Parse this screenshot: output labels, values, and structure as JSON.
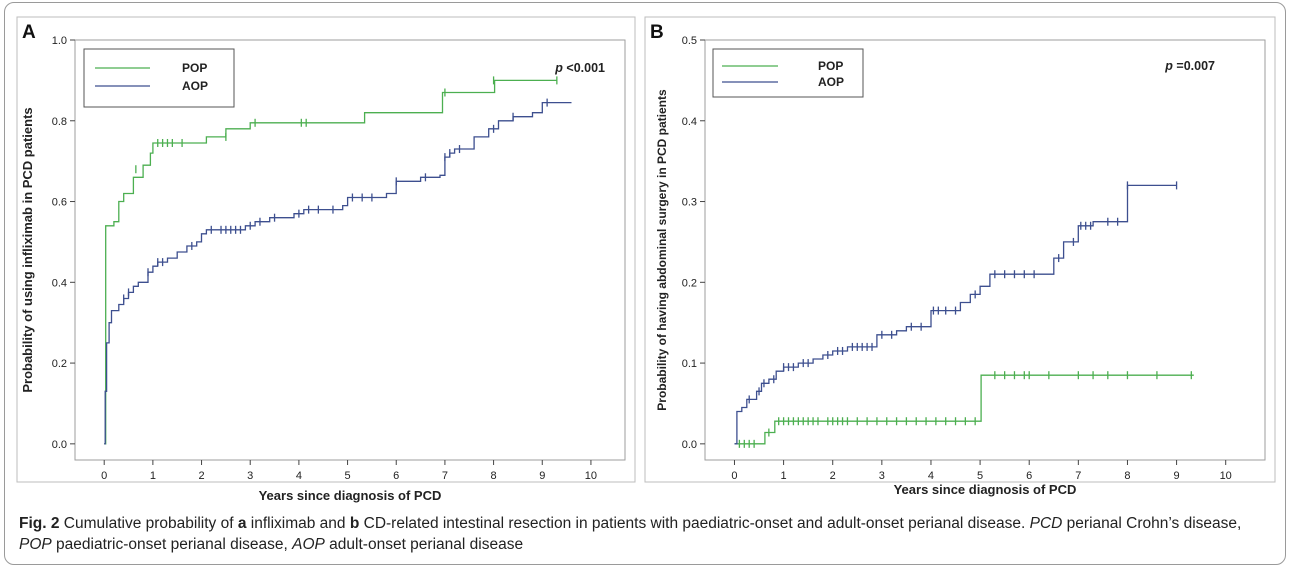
{
  "caption": {
    "label": "Fig. 2",
    "segments": [
      {
        "t": "  Cumulative probability of ",
        "s": "n"
      },
      {
        "t": "a",
        "s": "b"
      },
      {
        "t": " infliximab and ",
        "s": "n"
      },
      {
        "t": "b",
        "s": "b"
      },
      {
        "t": " CD-related intestinal resection in patients with paediatric-onset and adult-onset perianal disease. ",
        "s": "n"
      },
      {
        "t": "PCD",
        "s": "i"
      },
      {
        "t": " perianal Crohn’s disease, ",
        "s": "n"
      },
      {
        "t": "POP",
        "s": "i"
      },
      {
        "t": " paediatric-onset perianal disease, ",
        "s": "n"
      },
      {
        "t": "AOP",
        "s": "i"
      },
      {
        "t": " adult-onset perianal disease",
        "s": "n"
      }
    ]
  },
  "colors": {
    "POP": "#4caf50",
    "AOP": "#3d4f8f"
  },
  "chart_data": [
    {
      "type": "line",
      "panel": "A",
      "xlabel": "Years since diagnosis of PCD",
      "ylabel": "Probability of using infliximab in PCD patients",
      "xlim": [
        -0.6,
        10.7
      ],
      "ylim": [
        -0.04,
        1.0
      ],
      "xticks": [
        "0",
        "1",
        "2",
        "3",
        "4",
        "5",
        "6",
        "7",
        "8",
        "9",
        "10"
      ],
      "yticks": [
        "0.0",
        "0.2",
        "0.4",
        "0.6",
        "0.8",
        "1.0"
      ],
      "pvalue": "p <0.001",
      "legend": {
        "placement": "top-left",
        "entries": [
          "POP",
          "AOP"
        ]
      },
      "series": [
        {
          "name": "POP",
          "steps": [
            [
              0,
              0
            ],
            [
              0.03,
              0.54
            ],
            [
              0.2,
              0.55
            ],
            [
              0.3,
              0.6
            ],
            [
              0.4,
              0.62
            ],
            [
              0.6,
              0.66
            ],
            [
              0.8,
              0.69
            ],
            [
              0.95,
              0.72
            ],
            [
              1.0,
              0.745
            ],
            [
              2.0,
              0.745
            ],
            [
              2.1,
              0.76
            ],
            [
              2.5,
              0.78
            ],
            [
              3.0,
              0.795
            ],
            [
              5.3,
              0.795
            ],
            [
              5.35,
              0.82
            ],
            [
              6.9,
              0.82
            ],
            [
              6.95,
              0.87
            ],
            [
              8.0,
              0.87
            ],
            [
              8.02,
              0.9
            ],
            [
              9.3,
              0.9
            ]
          ],
          "censors": [
            [
              0.65,
              0.68
            ],
            [
              1.1,
              0.745
            ],
            [
              1.2,
              0.745
            ],
            [
              1.3,
              0.745
            ],
            [
              1.4,
              0.745
            ],
            [
              1.6,
              0.745
            ],
            [
              2.5,
              0.76
            ],
            [
              3.1,
              0.795
            ],
            [
              4.05,
              0.795
            ],
            [
              4.15,
              0.795
            ],
            [
              7.0,
              0.87
            ],
            [
              8.0,
              0.9
            ],
            [
              9.3,
              0.9
            ]
          ]
        },
        {
          "name": "AOP",
          "steps": [
            [
              0,
              0
            ],
            [
              0.02,
              0.13
            ],
            [
              0.05,
              0.25
            ],
            [
              0.1,
              0.3
            ],
            [
              0.15,
              0.33
            ],
            [
              0.3,
              0.345
            ],
            [
              0.4,
              0.36
            ],
            [
              0.5,
              0.375
            ],
            [
              0.6,
              0.39
            ],
            [
              0.7,
              0.4
            ],
            [
              0.9,
              0.425
            ],
            [
              1.0,
              0.44
            ],
            [
              1.1,
              0.45
            ],
            [
              1.3,
              0.46
            ],
            [
              1.5,
              0.475
            ],
            [
              1.7,
              0.49
            ],
            [
              1.9,
              0.5
            ],
            [
              2.0,
              0.52
            ],
            [
              2.1,
              0.53
            ],
            [
              2.9,
              0.54
            ],
            [
              3.1,
              0.55
            ],
            [
              3.4,
              0.56
            ],
            [
              3.9,
              0.57
            ],
            [
              4.1,
              0.58
            ],
            [
              4.9,
              0.59
            ],
            [
              5.0,
              0.61
            ],
            [
              5.8,
              0.62
            ],
            [
              6.0,
              0.65
            ],
            [
              6.5,
              0.66
            ],
            [
              6.9,
              0.665
            ],
            [
              7.0,
              0.71
            ],
            [
              7.1,
              0.72
            ],
            [
              7.2,
              0.73
            ],
            [
              7.6,
              0.76
            ],
            [
              7.9,
              0.78
            ],
            [
              8.1,
              0.8
            ],
            [
              8.4,
              0.81
            ],
            [
              8.8,
              0.82
            ],
            [
              9.0,
              0.845
            ],
            [
              9.6,
              0.845
            ]
          ],
          "censors": [
            [
              0.4,
              0.36
            ],
            [
              0.5,
              0.375
            ],
            [
              0.9,
              0.425
            ],
            [
              1.1,
              0.45
            ],
            [
              1.2,
              0.45
            ],
            [
              1.8,
              0.49
            ],
            [
              2.2,
              0.53
            ],
            [
              2.4,
              0.53
            ],
            [
              2.5,
              0.53
            ],
            [
              2.6,
              0.53
            ],
            [
              2.7,
              0.53
            ],
            [
              2.8,
              0.53
            ],
            [
              3.0,
              0.54
            ],
            [
              3.2,
              0.55
            ],
            [
              3.5,
              0.56
            ],
            [
              4.0,
              0.57
            ],
            [
              4.2,
              0.58
            ],
            [
              4.4,
              0.58
            ],
            [
              4.7,
              0.58
            ],
            [
              5.1,
              0.61
            ],
            [
              5.3,
              0.61
            ],
            [
              5.5,
              0.61
            ],
            [
              6.0,
              0.65
            ],
            [
              6.6,
              0.66
            ],
            [
              7.0,
              0.71
            ],
            [
              7.1,
              0.72
            ],
            [
              7.3,
              0.73
            ],
            [
              8.0,
              0.78
            ],
            [
              8.4,
              0.81
            ],
            [
              9.1,
              0.845
            ]
          ]
        }
      ]
    },
    {
      "type": "line",
      "panel": "B",
      "xlabel": "Years since diagnosis of PCD",
      "ylabel": "Probability of having abdominal surgery in PCD patients",
      "xlim": [
        -0.6,
        10.8
      ],
      "ylim": [
        -0.02,
        0.5
      ],
      "xticks": [
        "0",
        "1",
        "2",
        "3",
        "4",
        "5",
        "6",
        "7",
        "8",
        "9",
        "10"
      ],
      "yticks": [
        "0.0",
        "0.1",
        "0.2",
        "0.3",
        "0.4",
        "0.5"
      ],
      "pvalue": "p =0.007",
      "legend": {
        "placement": "top-left",
        "entries": [
          "POP",
          "AOP"
        ]
      },
      "series": [
        {
          "name": "POP",
          "steps": [
            [
              0,
              0
            ],
            [
              0.6,
              0
            ],
            [
              0.62,
              0.014
            ],
            [
              0.8,
              0.014
            ],
            [
              0.82,
              0.028
            ],
            [
              5.0,
              0.028
            ],
            [
              5.02,
              0.085
            ],
            [
              9.35,
              0.085
            ]
          ],
          "censors": [
            [
              0.1,
              0
            ],
            [
              0.2,
              0
            ],
            [
              0.3,
              0
            ],
            [
              0.4,
              0
            ],
            [
              0.7,
              0.014
            ],
            [
              0.9,
              0.028
            ],
            [
              1.0,
              0.028
            ],
            [
              1.1,
              0.028
            ],
            [
              1.2,
              0.028
            ],
            [
              1.3,
              0.028
            ],
            [
              1.4,
              0.028
            ],
            [
              1.5,
              0.028
            ],
            [
              1.6,
              0.028
            ],
            [
              1.7,
              0.028
            ],
            [
              1.9,
              0.028
            ],
            [
              2.0,
              0.028
            ],
            [
              2.1,
              0.028
            ],
            [
              2.2,
              0.028
            ],
            [
              2.3,
              0.028
            ],
            [
              2.5,
              0.028
            ],
            [
              2.7,
              0.028
            ],
            [
              2.9,
              0.028
            ],
            [
              3.1,
              0.028
            ],
            [
              3.3,
              0.028
            ],
            [
              3.5,
              0.028
            ],
            [
              3.7,
              0.028
            ],
            [
              3.9,
              0.028
            ],
            [
              4.1,
              0.028
            ],
            [
              4.3,
              0.028
            ],
            [
              4.5,
              0.028
            ],
            [
              4.7,
              0.028
            ],
            [
              4.9,
              0.028
            ],
            [
              5.3,
              0.085
            ],
            [
              5.5,
              0.085
            ],
            [
              5.7,
              0.085
            ],
            [
              5.9,
              0.085
            ],
            [
              6.0,
              0.085
            ],
            [
              6.4,
              0.085
            ],
            [
              7.0,
              0.085
            ],
            [
              7.3,
              0.085
            ],
            [
              7.6,
              0.085
            ],
            [
              8.0,
              0.085
            ],
            [
              8.6,
              0.085
            ],
            [
              9.3,
              0.085
            ]
          ]
        },
        {
          "name": "AOP",
          "steps": [
            [
              0,
              0
            ],
            [
              0.05,
              0.04
            ],
            [
              0.15,
              0.045
            ],
            [
              0.25,
              0.055
            ],
            [
              0.45,
              0.065
            ],
            [
              0.55,
              0.075
            ],
            [
              0.7,
              0.08
            ],
            [
              0.85,
              0.09
            ],
            [
              1.0,
              0.095
            ],
            [
              1.3,
              0.1
            ],
            [
              1.6,
              0.105
            ],
            [
              1.8,
              0.11
            ],
            [
              2.0,
              0.115
            ],
            [
              2.3,
              0.12
            ],
            [
              2.9,
              0.135
            ],
            [
              3.3,
              0.14
            ],
            [
              3.5,
              0.145
            ],
            [
              4.0,
              0.165
            ],
            [
              4.6,
              0.175
            ],
            [
              4.8,
              0.185
            ],
            [
              5.0,
              0.195
            ],
            [
              5.2,
              0.21
            ],
            [
              6.0,
              0.21
            ],
            [
              6.5,
              0.23
            ],
            [
              6.7,
              0.25
            ],
            [
              7.0,
              0.27
            ],
            [
              7.3,
              0.275
            ],
            [
              8.0,
              0.32
            ],
            [
              9.0,
              0.32
            ]
          ],
          "censors": [
            [
              0.3,
              0.055
            ],
            [
              0.5,
              0.065
            ],
            [
              0.6,
              0.075
            ],
            [
              0.8,
              0.08
            ],
            [
              1.0,
              0.095
            ],
            [
              1.1,
              0.095
            ],
            [
              1.2,
              0.095
            ],
            [
              1.4,
              0.1
            ],
            [
              1.5,
              0.1
            ],
            [
              1.9,
              0.11
            ],
            [
              2.1,
              0.115
            ],
            [
              2.2,
              0.115
            ],
            [
              2.4,
              0.12
            ],
            [
              2.5,
              0.12
            ],
            [
              2.6,
              0.12
            ],
            [
              2.7,
              0.12
            ],
            [
              2.8,
              0.12
            ],
            [
              3.0,
              0.135
            ],
            [
              3.2,
              0.135
            ],
            [
              3.6,
              0.145
            ],
            [
              3.8,
              0.145
            ],
            [
              4.05,
              0.165
            ],
            [
              4.15,
              0.165
            ],
            [
              4.3,
              0.165
            ],
            [
              4.5,
              0.165
            ],
            [
              4.9,
              0.185
            ],
            [
              5.3,
              0.21
            ],
            [
              5.5,
              0.21
            ],
            [
              5.7,
              0.21
            ],
            [
              5.9,
              0.21
            ],
            [
              6.1,
              0.21
            ],
            [
              6.6,
              0.23
            ],
            [
              6.9,
              0.25
            ],
            [
              7.05,
              0.27
            ],
            [
              7.15,
              0.27
            ],
            [
              7.25,
              0.27
            ],
            [
              7.6,
              0.275
            ],
            [
              7.8,
              0.275
            ],
            [
              8.0,
              0.32
            ],
            [
              9.0,
              0.32
            ]
          ]
        }
      ]
    }
  ]
}
